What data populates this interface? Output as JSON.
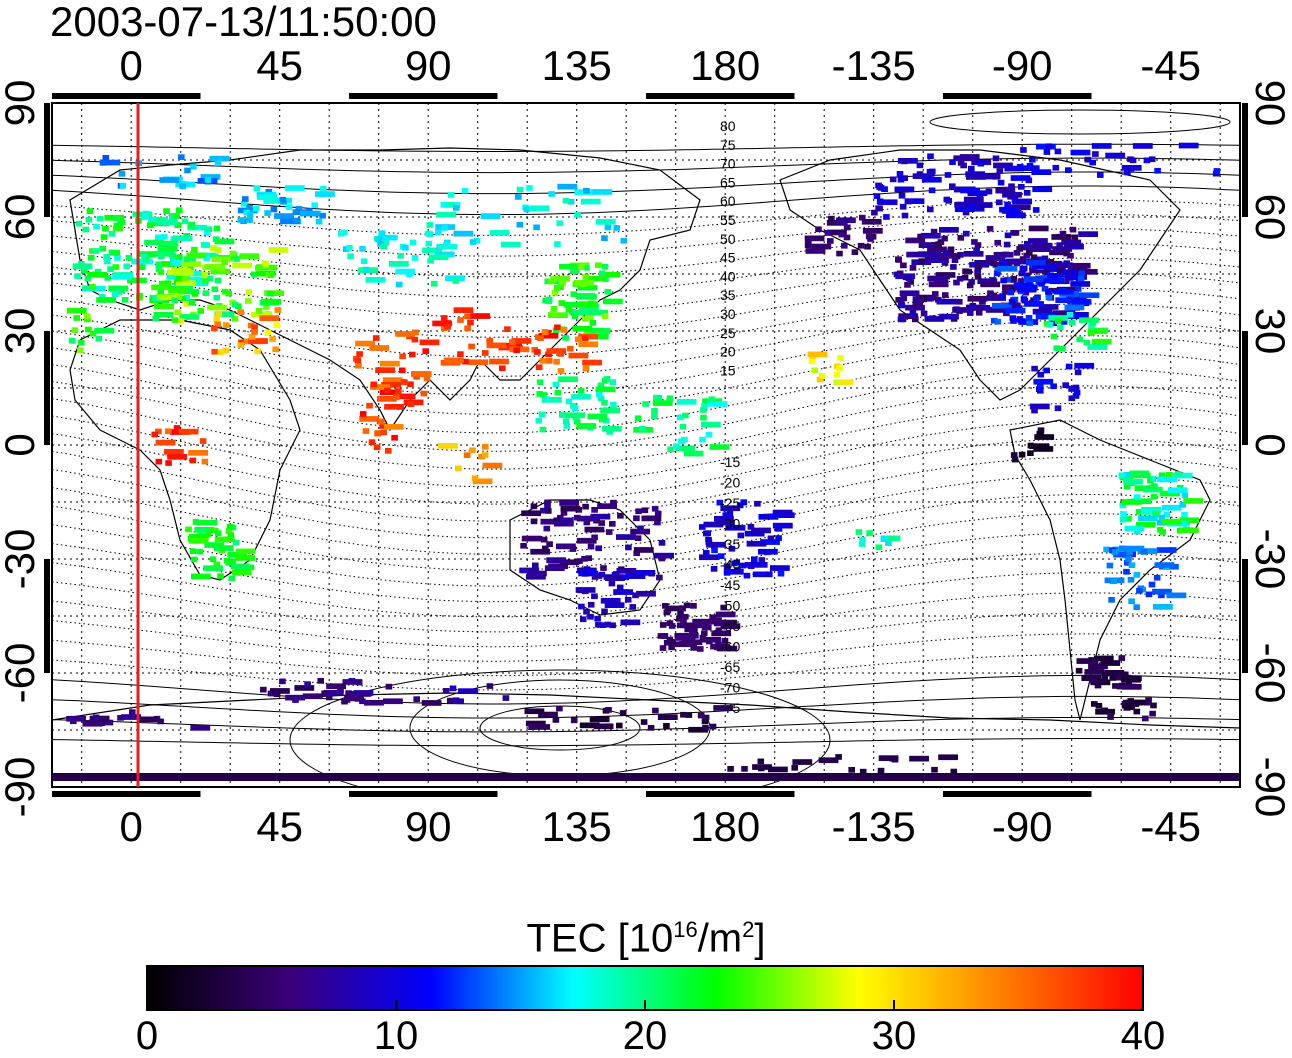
{
  "title": "2003-07-13/11:50:00",
  "x_ticks_top": [
    "0",
    "45",
    "90",
    "135",
    "180",
    "-135",
    "-90",
    "-45"
  ],
  "x_ticks_bottom": [
    "0",
    "45",
    "90",
    "135",
    "180",
    "-135",
    "-90",
    "-45"
  ],
  "y_ticks_left": [
    "90",
    "60",
    "30",
    "0",
    "-30",
    "-60",
    "-90"
  ],
  "y_ticks_right": [
    "90",
    "60",
    "30",
    "0",
    "-30",
    "-60",
    "-90"
  ],
  "colorbar": {
    "label_main": "TEC  [10",
    "label_sup1": "16",
    "label_mid": "/m",
    "label_sup2": "2",
    "label_end": "]",
    "ticks": [
      "0",
      "10",
      "20",
      "30",
      "40"
    ],
    "stops": [
      "#000000",
      "#3a0078",
      "#0000ff",
      "#00ffff",
      "#00ff00",
      "#ffff00",
      "#ff8000",
      "#ff0000"
    ]
  },
  "contour_labels_north": [
    "80",
    "75",
    "70",
    "65",
    "60",
    "55",
    "50",
    "45",
    "40",
    "35",
    "30",
    "25",
    "20",
    "15"
  ],
  "contour_labels_south": [
    "-15",
    "-20",
    "-25",
    "-30",
    "-35",
    "-40",
    "-45",
    "-50",
    "-55",
    "-60",
    "-65",
    "-70",
    "-75"
  ],
  "terminator_color": "#e02020",
  "map": {
    "region": "world, longitude -24..336, latitude -90..90",
    "features": [
      "coastlines",
      "magnetic latitude contours",
      "TEC measurement tiles",
      "solar terminator line"
    ]
  }
}
